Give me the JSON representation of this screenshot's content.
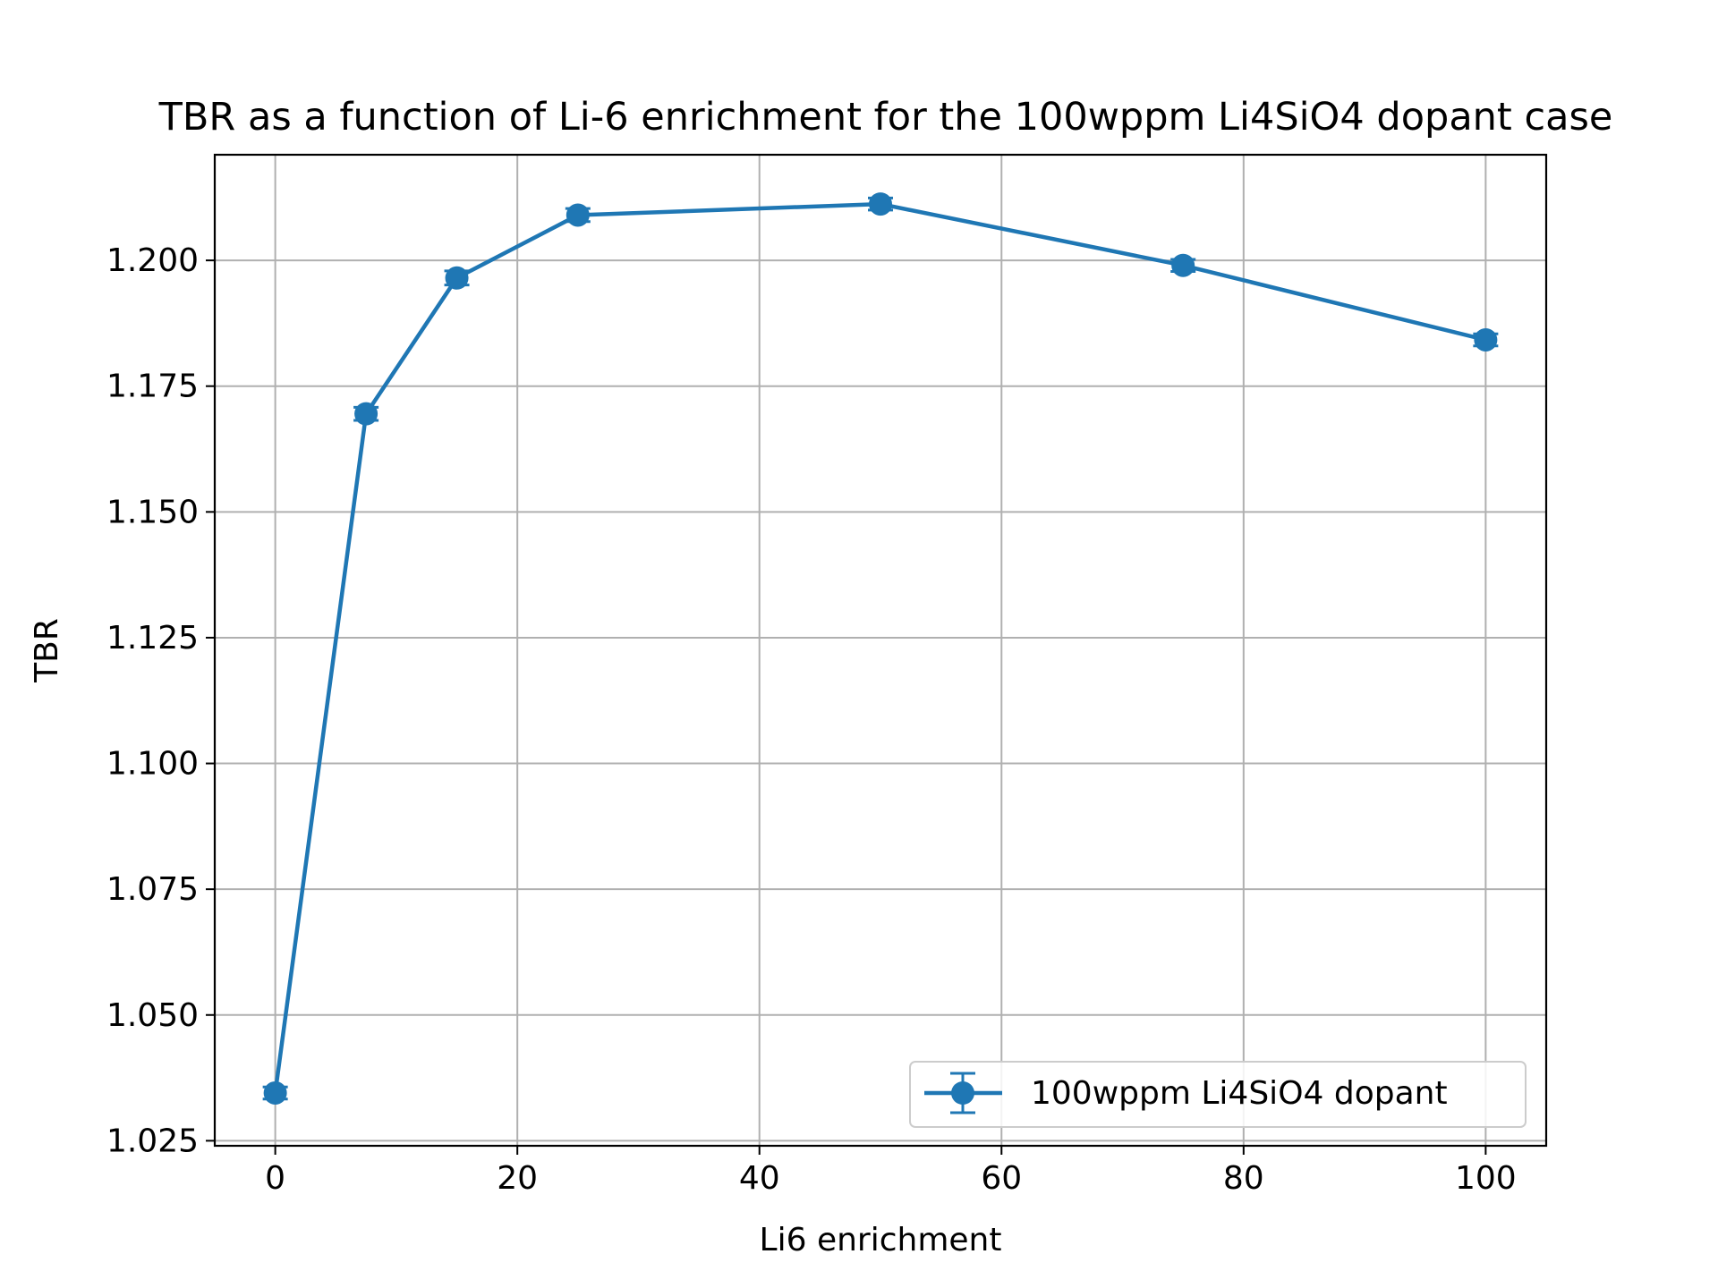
{
  "chart_data": {
    "type": "line",
    "title": "TBR as a function of Li-6 enrichment for the 100wppm Li4SiO4 dopant case",
    "xlabel": "Li6 enrichment",
    "ylabel": "TBR",
    "xlim": [
      -5,
      105
    ],
    "ylim": [
      1.024,
      1.221
    ],
    "xticks": [
      0,
      20,
      40,
      60,
      80,
      100
    ],
    "xtick_labels": [
      "0",
      "20",
      "40",
      "60",
      "80",
      "100"
    ],
    "yticks": [
      1.025,
      1.05,
      1.075,
      1.1,
      1.125,
      1.15,
      1.175,
      1.2
    ],
    "ytick_labels": [
      "1.025",
      "1.050",
      "1.075",
      "1.100",
      "1.125",
      "1.150",
      "1.175",
      "1.200"
    ],
    "grid": true,
    "legend_position": "bottom-right",
    "series": [
      {
        "name": "100wppm Li4SiO4 dopant",
        "color": "#1f77b4",
        "marker": "circle",
        "error_bars": true,
        "x": [
          0,
          7.5,
          15,
          25,
          50,
          75,
          100
        ],
        "y": [
          1.0345,
          1.1695,
          1.1965,
          1.209,
          1.2112,
          1.199,
          1.1842
        ],
        "yerr": [
          0.0012,
          0.0013,
          0.0014,
          0.0013,
          0.0012,
          0.0012,
          0.0012
        ]
      }
    ]
  }
}
